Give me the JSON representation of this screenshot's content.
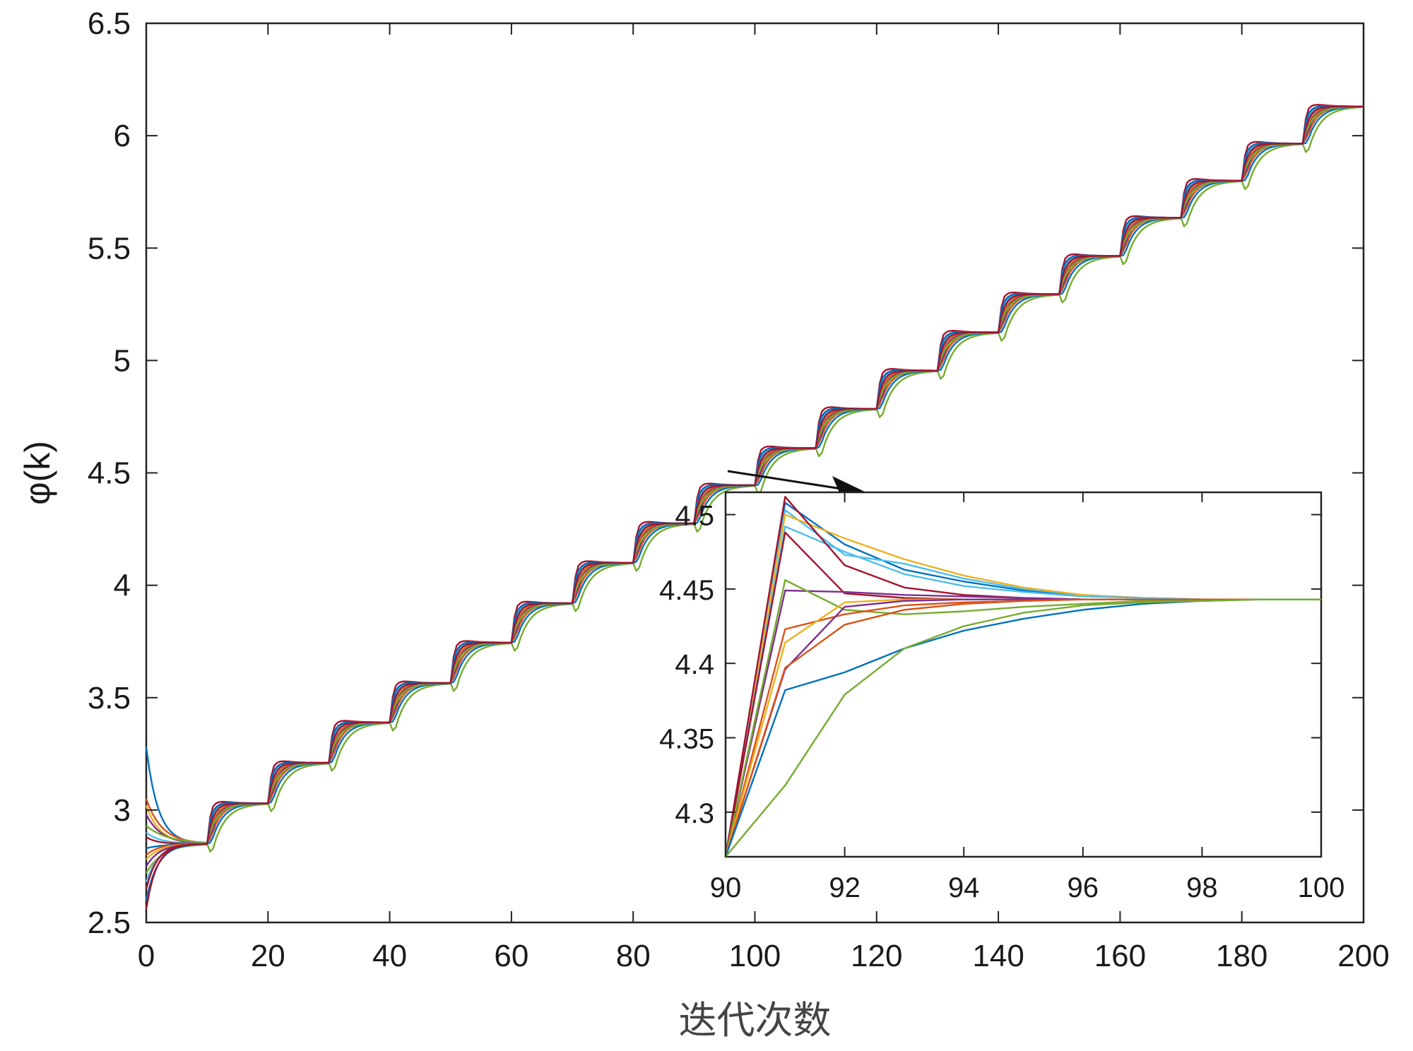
{
  "chart_data": [
    {
      "id": "main",
      "type": "line",
      "xlabel": "迭代次数",
      "ylabel": "φ(k)",
      "xlim": [
        0,
        200
      ],
      "ylim": [
        2.5,
        6.5
      ],
      "xticks": [
        "0",
        "20",
        "40",
        "60",
        "80",
        "100",
        "120",
        "140",
        "160",
        "180",
        "200"
      ],
      "yticks": [
        "2.5",
        "3",
        "3.5",
        "4",
        "4.5",
        "5",
        "5.5",
        "6",
        "6.5"
      ],
      "grid": false,
      "steps": {
        "interval": 10,
        "levels": [
          2.85,
          3.03,
          3.21,
          3.39,
          3.565,
          3.745,
          3.92,
          4.1,
          4.275,
          4.445,
          4.61,
          4.785,
          4.955,
          5.125,
          5.295,
          5.465,
          5.635,
          5.8,
          5.965,
          6.13
        ]
      },
      "initial_values": [
        3.28,
        3.05,
        3.02,
        2.98,
        2.93,
        2.9,
        2.88,
        2.83,
        2.8,
        2.78,
        2.75,
        2.72,
        2.68,
        2.65,
        2.6,
        2.56
      ],
      "series": [
        {
          "color": "#0072BD",
          "overshoot": 0.03,
          "slowness": 0.3
        },
        {
          "color": "#D95319",
          "overshoot": -0.055,
          "slowness": 0.55
        },
        {
          "color": "#EDB120",
          "overshoot": 0.04,
          "slowness": 0.4
        },
        {
          "color": "#7E2F8E",
          "overshoot": 0.005,
          "slowness": 0.5
        },
        {
          "color": "#77AC30",
          "overshoot": -0.15,
          "slowness": 0.95
        },
        {
          "color": "#4DBEEE",
          "overshoot": 0.025,
          "slowness": 0.45
        },
        {
          "color": "#A2142F",
          "overshoot": 0.07,
          "slowness": 0.2
        },
        {
          "color": "#0072BD",
          "overshoot": -0.08,
          "slowness": 0.7
        },
        {
          "color": "#D95319",
          "overshoot": -0.02,
          "slowness": 0.35
        },
        {
          "color": "#EDB120",
          "overshoot": -0.035,
          "slowness": 0.45
        },
        {
          "color": "#7E2F8E",
          "overshoot": -0.05,
          "slowness": 0.4
        },
        {
          "color": "#77AC30",
          "overshoot": 0.01,
          "slowness": 0.6
        },
        {
          "color": "#4DBEEE",
          "overshoot": 0.05,
          "slowness": 0.35
        },
        {
          "color": "#A2142F",
          "overshoot": 0.045,
          "slowness": 0.25
        },
        {
          "color": "#0072BD",
          "overshoot": 0.06,
          "slowness": 0.3
        },
        {
          "color": "#A2142F",
          "overshoot": -0.02,
          "slowness": 0.2
        }
      ]
    },
    {
      "id": "inset",
      "type": "line",
      "xlim": [
        90,
        100
      ],
      "ylim": [
        4.27,
        4.515
      ],
      "xticks": [
        "90",
        "92",
        "94",
        "96",
        "98",
        "100"
      ],
      "yticks": [
        "4.3",
        "4.35",
        "4.4",
        "4.45",
        "4.5"
      ],
      "x": [
        90,
        91,
        92,
        93,
        94,
        95,
        96,
        97,
        98,
        99,
        100
      ],
      "series": [
        {
          "color": "#0072BD",
          "values": [
            4.27,
            4.508,
            4.48,
            4.463,
            4.455,
            4.449,
            4.446,
            4.444,
            4.443,
            4.443,
            4.443
          ]
        },
        {
          "color": "#4DBEEE",
          "values": [
            4.27,
            4.503,
            4.473,
            4.467,
            4.457,
            4.45,
            4.446,
            4.444,
            4.443,
            4.443,
            4.443
          ]
        },
        {
          "color": "#EDB120",
          "values": [
            4.27,
            4.5,
            4.484,
            4.47,
            4.459,
            4.451,
            4.446,
            4.444,
            4.443,
            4.443,
            4.443
          ]
        },
        {
          "color": "#4DBEEE",
          "values": [
            4.27,
            4.492,
            4.475,
            4.46,
            4.452,
            4.448,
            4.445,
            4.444,
            4.443,
            4.443,
            4.443
          ]
        },
        {
          "color": "#A2142F",
          "values": [
            4.27,
            4.512,
            4.466,
            4.451,
            4.446,
            4.444,
            4.443,
            4.443,
            4.443,
            4.443,
            4.443
          ]
        },
        {
          "color": "#A2142F",
          "values": [
            4.27,
            4.488,
            4.447,
            4.444,
            4.443,
            4.443,
            4.443,
            4.443,
            4.443,
            4.443,
            4.443
          ]
        },
        {
          "color": "#7E2F8E",
          "values": [
            4.27,
            4.449,
            4.448,
            4.446,
            4.445,
            4.444,
            4.443,
            4.443,
            4.443,
            4.443,
            4.443
          ]
        },
        {
          "color": "#77AC30",
          "values": [
            4.27,
            4.456,
            4.436,
            4.433,
            4.435,
            4.438,
            4.44,
            4.442,
            4.443,
            4.443,
            4.443
          ]
        },
        {
          "color": "#D95319",
          "values": [
            4.27,
            4.423,
            4.433,
            4.439,
            4.441,
            4.442,
            4.443,
            4.443,
            4.443,
            4.443,
            4.443
          ]
        },
        {
          "color": "#EDB120",
          "values": [
            4.27,
            4.414,
            4.441,
            4.443,
            4.443,
            4.443,
            4.443,
            4.443,
            4.443,
            4.443,
            4.443
          ]
        },
        {
          "color": "#7E2F8E",
          "values": [
            4.27,
            4.396,
            4.438,
            4.442,
            4.443,
            4.443,
            4.443,
            4.443,
            4.443,
            4.443,
            4.443
          ]
        },
        {
          "color": "#D95319",
          "values": [
            4.27,
            4.397,
            4.426,
            4.436,
            4.44,
            4.442,
            4.443,
            4.443,
            4.443,
            4.443,
            4.443
          ]
        },
        {
          "color": "#0072BD",
          "values": [
            4.27,
            4.382,
            4.394,
            4.41,
            4.422,
            4.43,
            4.436,
            4.44,
            4.442,
            4.443,
            4.443
          ]
        },
        {
          "color": "#77AC30",
          "values": [
            4.27,
            4.318,
            4.379,
            4.41,
            4.425,
            4.434,
            4.439,
            4.441,
            4.442,
            4.443,
            4.443
          ]
        }
      ]
    }
  ]
}
